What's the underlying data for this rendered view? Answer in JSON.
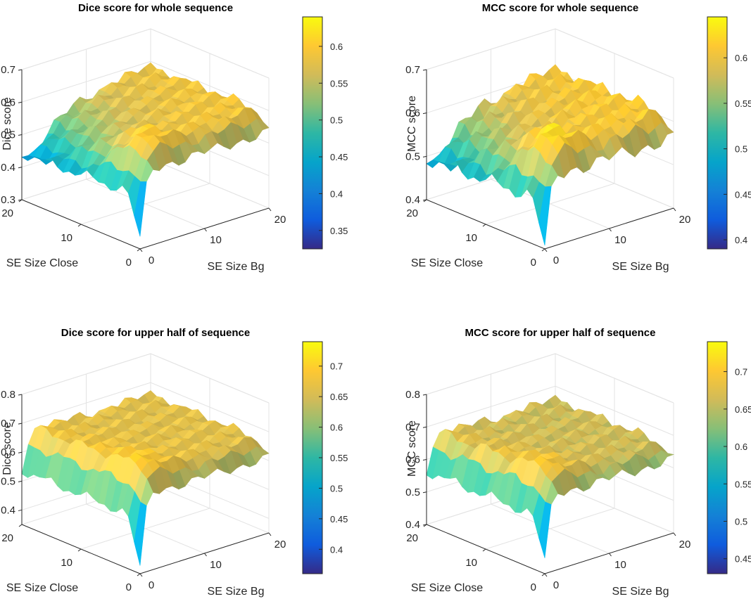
{
  "colors": {
    "parula_stops": [
      "#352a87",
      "#0f5cdd",
      "#1481d6",
      "#06a4ca",
      "#2eb7a4",
      "#87bf77",
      "#d1bb59",
      "#fec832",
      "#f9fb0e"
    ]
  },
  "chart_data": [
    {
      "type": "surface",
      "title": "Dice score for whole sequence",
      "xlabel": "SE Size Bg",
      "ylabel": "SE Size Close",
      "zlabel": "Dice score",
      "xlim": [
        0,
        20
      ],
      "ylim": [
        0,
        20
      ],
      "zlim": [
        0.3,
        0.7
      ],
      "xticks": [
        "0",
        "10",
        "20"
      ],
      "yticks": [
        "0",
        "10",
        "20"
      ],
      "zticks": [
        "0.3",
        "0.4",
        "0.5",
        "0.6",
        "0.7"
      ],
      "colorbar": {
        "ticks": [
          "0.35",
          "0.4",
          "0.45",
          "0.5",
          "0.55",
          "0.6"
        ],
        "range": [
          0.325,
          0.64
        ]
      },
      "grid": true,
      "data": {
        "z_min": 0.33,
        "plateau_bg": 0.59,
        "plateau_close_high": 0.38,
        "plateau_close_low": 0.58,
        "ridge_peak": 0.62,
        "bg_zero_dip": 0.45,
        "close_zero_dip": 0.52
      }
    },
    {
      "type": "surface",
      "title": "MCC score for whole sequence",
      "xlabel": "SE Size Bg",
      "ylabel": "SE Size Close",
      "zlabel": "MCC score",
      "xlim": [
        0,
        20
      ],
      "ylim": [
        0,
        20
      ],
      "zlim": [
        0.4,
        0.7
      ],
      "xticks": [
        "0",
        "10",
        "20"
      ],
      "yticks": [
        "0",
        "10",
        "20"
      ],
      "zticks": [
        "0.4",
        "0.5",
        "0.6",
        "0.7"
      ],
      "colorbar": {
        "ticks": [
          "0.4",
          "0.45",
          "0.5",
          "0.55",
          "0.6"
        ],
        "range": [
          0.39,
          0.645
        ]
      },
      "grid": true,
      "data": {
        "z_min": 0.4,
        "plateau_bg": 0.61,
        "plateau_close_high": 0.45,
        "plateau_close_low": 0.6,
        "ridge_peak": 0.64,
        "bg_zero_dip": 0.5,
        "close_zero_dip": 0.55
      }
    },
    {
      "type": "surface",
      "title": "Dice score for upper half of sequence",
      "xlabel": "SE Size Bg",
      "ylabel": "SE Size Close",
      "zlabel": "Dice score",
      "xlim": [
        0,
        20
      ],
      "ylim": [
        0,
        20
      ],
      "zlim": [
        0.35,
        0.8
      ],
      "xticks": [
        "0",
        "10",
        "20"
      ],
      "yticks": [
        "0",
        "10",
        "20"
      ],
      "zticks": [
        "0.4",
        "0.5",
        "0.6",
        "0.7",
        "0.8"
      ],
      "colorbar": {
        "ticks": [
          "0.4",
          "0.45",
          "0.5",
          "0.55",
          "0.6",
          "0.65",
          "0.7"
        ],
        "range": [
          0.36,
          0.74
        ]
      },
      "grid": true,
      "data": {
        "z_min": 0.37,
        "plateau_bg": 0.66,
        "plateau_close_high": 0.69,
        "plateau_close_low": 0.72,
        "ridge_peak": 0.74,
        "bg_zero_dip": 0.52,
        "close_zero_dip": 0.6
      }
    },
    {
      "type": "surface",
      "title": "MCC score for upper half of sequence",
      "xlabel": "SE Size Bg",
      "ylabel": "SE Size Close",
      "zlabel": "MCC score",
      "xlim": [
        0,
        20
      ],
      "ylim": [
        0,
        20
      ],
      "zlim": [
        0.4,
        0.8
      ],
      "xticks": [
        "0",
        "10",
        "20"
      ],
      "yticks": [
        "0",
        "10",
        "20"
      ],
      "zticks": [
        "0.4",
        "0.5",
        "0.6",
        "0.7",
        "0.8"
      ],
      "colorbar": {
        "ticks": [
          "0.45",
          "0.5",
          "0.55",
          "0.6",
          "0.65",
          "0.7"
        ],
        "range": [
          0.43,
          0.74
        ]
      },
      "grid": true,
      "data": {
        "z_min": 0.44,
        "plateau_bg": 0.66,
        "plateau_close_high": 0.69,
        "plateau_close_low": 0.72,
        "ridge_peak": 0.74,
        "bg_zero_dip": 0.55,
        "close_zero_dip": 0.62
      }
    }
  ]
}
